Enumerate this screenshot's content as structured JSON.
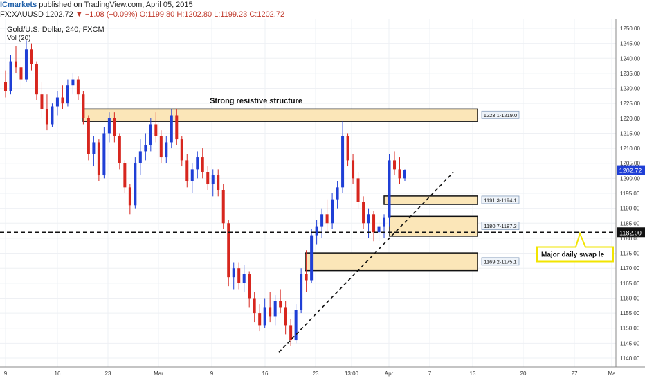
{
  "header": {
    "brand": "ICmarkets",
    "published_text": "published on TradingView.com, April 05, 2015",
    "symbol": "FX:XAUUSD",
    "last": "1202.72",
    "change": "−1.08 (−0.09%)",
    "ohlc_text": "O:1199.80 H:1202.80 L:1199.23 C:1202.72"
  },
  "chart_data": {
    "type": "candlestick",
    "title": "Gold/U.S. Dollar, 240, FXCM",
    "subtitle": "Vol (20)",
    "ylim": [
      1137,
      1253
    ],
    "y_ticks": [
      1140,
      1145,
      1150,
      1155,
      1160,
      1165,
      1170,
      1175,
      1180,
      1185,
      1190,
      1195,
      1200,
      1205,
      1210,
      1215,
      1220,
      1225,
      1230,
      1235,
      1240,
      1245,
      1250
    ],
    "x_tick_labels": [
      "9",
      "16",
      "23",
      "Mar",
      "9",
      "16",
      "23",
      "13:00",
      "Apr",
      "7",
      "13",
      "20",
      "27",
      "Ma"
    ],
    "grid": true,
    "current_price_label": "1202.72",
    "horizontal_level_label": "1182.00",
    "horizontal_level": 1182.0,
    "zones": [
      {
        "label": "1223.1-1219.0",
        "low": 1219.0,
        "high": 1223.1,
        "title": "Strong resistive structure"
      },
      {
        "label": "1191.3-1194.1",
        "low": 1191.3,
        "high": 1194.1
      },
      {
        "label": "1180.7-1187.3",
        "low": 1180.7,
        "high": 1187.3
      },
      {
        "label": "1169.2-1175.1",
        "low": 1169.2,
        "high": 1175.1
      }
    ],
    "annotation": "Major daily swap le",
    "trendline": [
      [
        1142,
        0
      ],
      [
        1202,
        1
      ]
    ],
    "candles": [
      {
        "o": 1232,
        "h": 1236,
        "l": 1227,
        "c": 1229
      },
      {
        "o": 1229,
        "h": 1241,
        "l": 1228,
        "c": 1239
      },
      {
        "o": 1239,
        "h": 1244,
        "l": 1235,
        "c": 1237
      },
      {
        "o": 1237,
        "h": 1240,
        "l": 1230,
        "c": 1233
      },
      {
        "o": 1233,
        "h": 1246,
        "l": 1232,
        "c": 1243
      },
      {
        "o": 1243,
        "h": 1245,
        "l": 1236,
        "c": 1238
      },
      {
        "o": 1238,
        "h": 1239,
        "l": 1226,
        "c": 1228
      },
      {
        "o": 1228,
        "h": 1232,
        "l": 1220,
        "c": 1223
      },
      {
        "o": 1223,
        "h": 1228,
        "l": 1216,
        "c": 1218
      },
      {
        "o": 1218,
        "h": 1225,
        "l": 1217,
        "c": 1224
      },
      {
        "o": 1224,
        "h": 1229,
        "l": 1221,
        "c": 1227
      },
      {
        "o": 1227,
        "h": 1231,
        "l": 1223,
        "c": 1225
      },
      {
        "o": 1225,
        "h": 1233,
        "l": 1224,
        "c": 1231
      },
      {
        "o": 1231,
        "h": 1235,
        "l": 1228,
        "c": 1233
      },
      {
        "o": 1233,
        "h": 1234,
        "l": 1226,
        "c": 1228
      },
      {
        "o": 1228,
        "h": 1229,
        "l": 1218,
        "c": 1220
      },
      {
        "o": 1220,
        "h": 1221,
        "l": 1206,
        "c": 1208
      },
      {
        "o": 1208,
        "h": 1214,
        "l": 1204,
        "c": 1212
      },
      {
        "o": 1212,
        "h": 1213,
        "l": 1199,
        "c": 1201
      },
      {
        "o": 1201,
        "h": 1217,
        "l": 1200,
        "c": 1215
      },
      {
        "o": 1215,
        "h": 1222,
        "l": 1212,
        "c": 1220
      },
      {
        "o": 1220,
        "h": 1222,
        "l": 1212,
        "c": 1214
      },
      {
        "o": 1214,
        "h": 1215,
        "l": 1203,
        "c": 1205
      },
      {
        "o": 1205,
        "h": 1206,
        "l": 1195,
        "c": 1197
      },
      {
        "o": 1197,
        "h": 1198,
        "l": 1188,
        "c": 1191
      },
      {
        "o": 1191,
        "h": 1207,
        "l": 1190,
        "c": 1205
      },
      {
        "o": 1205,
        "h": 1213,
        "l": 1201,
        "c": 1209
      },
      {
        "o": 1209,
        "h": 1215,
        "l": 1206,
        "c": 1211
      },
      {
        "o": 1211,
        "h": 1220,
        "l": 1209,
        "c": 1218
      },
      {
        "o": 1218,
        "h": 1222,
        "l": 1212,
        "c": 1214
      },
      {
        "o": 1214,
        "h": 1216,
        "l": 1205,
        "c": 1207
      },
      {
        "o": 1207,
        "h": 1214,
        "l": 1205,
        "c": 1212
      },
      {
        "o": 1212,
        "h": 1223,
        "l": 1210,
        "c": 1221
      },
      {
        "o": 1221,
        "h": 1223,
        "l": 1211,
        "c": 1213
      },
      {
        "o": 1213,
        "h": 1214,
        "l": 1204,
        "c": 1206
      },
      {
        "o": 1206,
        "h": 1208,
        "l": 1197,
        "c": 1199
      },
      {
        "o": 1199,
        "h": 1205,
        "l": 1195,
        "c": 1203
      },
      {
        "o": 1203,
        "h": 1209,
        "l": 1200,
        "c": 1207
      },
      {
        "o": 1207,
        "h": 1210,
        "l": 1200,
        "c": 1202
      },
      {
        "o": 1202,
        "h": 1204,
        "l": 1196,
        "c": 1198
      },
      {
        "o": 1198,
        "h": 1203,
        "l": 1194,
        "c": 1201
      },
      {
        "o": 1201,
        "h": 1203,
        "l": 1194,
        "c": 1196
      },
      {
        "o": 1196,
        "h": 1198,
        "l": 1183,
        "c": 1185
      },
      {
        "o": 1185,
        "h": 1186,
        "l": 1164,
        "c": 1167
      },
      {
        "o": 1167,
        "h": 1172,
        "l": 1163,
        "c": 1170
      },
      {
        "o": 1170,
        "h": 1172,
        "l": 1163,
        "c": 1165
      },
      {
        "o": 1165,
        "h": 1171,
        "l": 1162,
        "c": 1168
      },
      {
        "o": 1168,
        "h": 1169,
        "l": 1157,
        "c": 1160
      },
      {
        "o": 1160,
        "h": 1162,
        "l": 1152,
        "c": 1155
      },
      {
        "o": 1155,
        "h": 1158,
        "l": 1149,
        "c": 1151
      },
      {
        "o": 1151,
        "h": 1160,
        "l": 1150,
        "c": 1157
      },
      {
        "o": 1157,
        "h": 1162,
        "l": 1152,
        "c": 1154
      },
      {
        "o": 1154,
        "h": 1161,
        "l": 1151,
        "c": 1159
      },
      {
        "o": 1159,
        "h": 1163,
        "l": 1155,
        "c": 1157
      },
      {
        "o": 1157,
        "h": 1159,
        "l": 1148,
        "c": 1151
      },
      {
        "o": 1151,
        "h": 1153,
        "l": 1144,
        "c": 1146
      },
      {
        "o": 1146,
        "h": 1158,
        "l": 1145,
        "c": 1156
      },
      {
        "o": 1156,
        "h": 1170,
        "l": 1155,
        "c": 1168
      },
      {
        "o": 1168,
        "h": 1176,
        "l": 1162,
        "c": 1166
      },
      {
        "o": 1166,
        "h": 1183,
        "l": 1165,
        "c": 1181
      },
      {
        "o": 1181,
        "h": 1186,
        "l": 1178,
        "c": 1184
      },
      {
        "o": 1184,
        "h": 1190,
        "l": 1180,
        "c": 1188
      },
      {
        "o": 1188,
        "h": 1193,
        "l": 1182,
        "c": 1185
      },
      {
        "o": 1185,
        "h": 1195,
        "l": 1183,
        "c": 1193
      },
      {
        "o": 1193,
        "h": 1199,
        "l": 1190,
        "c": 1197
      },
      {
        "o": 1197,
        "h": 1219,
        "l": 1195,
        "c": 1214
      },
      {
        "o": 1214,
        "h": 1215,
        "l": 1204,
        "c": 1206
      },
      {
        "o": 1206,
        "h": 1208,
        "l": 1198,
        "c": 1200
      },
      {
        "o": 1200,
        "h": 1202,
        "l": 1190,
        "c": 1192
      },
      {
        "o": 1192,
        "h": 1194,
        "l": 1183,
        "c": 1185
      },
      {
        "o": 1185,
        "h": 1190,
        "l": 1180,
        "c": 1188
      },
      {
        "o": 1188,
        "h": 1189,
        "l": 1179,
        "c": 1182
      },
      {
        "o": 1182,
        "h": 1186,
        "l": 1179,
        "c": 1184
      },
      {
        "o": 1184,
        "h": 1188,
        "l": 1180,
        "c": 1187
      },
      {
        "o": 1187,
        "h": 1208,
        "l": 1184,
        "c": 1206
      },
      {
        "o": 1206,
        "h": 1209,
        "l": 1201,
        "c": 1203
      },
      {
        "o": 1203,
        "h": 1207,
        "l": 1198,
        "c": 1200
      },
      {
        "o": 1200,
        "h": 1203,
        "l": 1199,
        "c": 1202.7
      }
    ]
  }
}
